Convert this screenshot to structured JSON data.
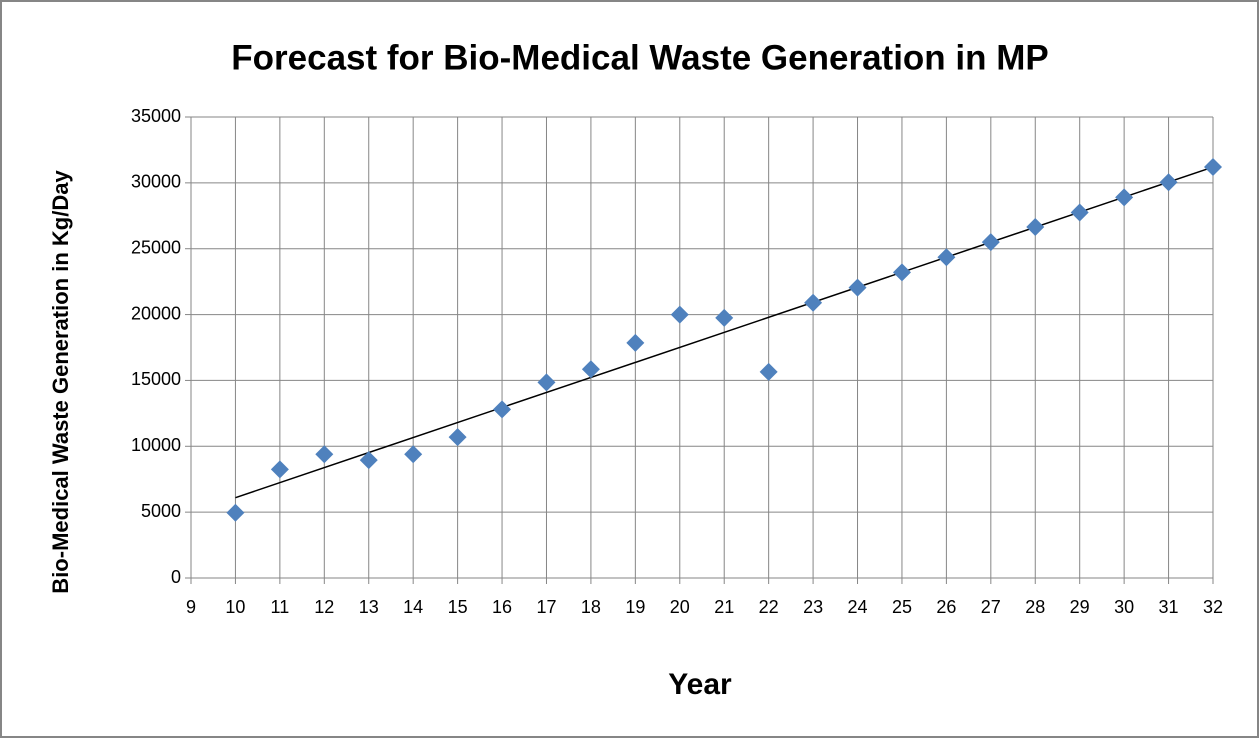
{
  "chart_data": {
    "type": "scatter",
    "title": "Forecast for Bio-Medical Waste Generation in MP",
    "x_label": "Year",
    "y_label": "Bio-Medical Waste Generation in Kg/Day",
    "x": [
      10,
      11,
      12,
      13,
      14,
      15,
      16,
      17,
      18,
      19,
      20,
      21,
      22,
      23,
      24,
      25,
      26,
      27,
      28,
      29,
      30,
      31,
      32
    ],
    "values": [
      4950,
      8250,
      9400,
      8950,
      9400,
      10700,
      12800,
      14850,
      15850,
      17850,
      20000,
      19750,
      15650,
      20900,
      22050,
      23200,
      24350,
      25500,
      26650,
      27750,
      28900,
      30050,
      31200
    ],
    "color": "#4f81bd",
    "trendline": {
      "x": [
        10,
        32
      ],
      "values": [
        6100,
        31200
      ],
      "color": "#000000"
    },
    "xlim": [
      9,
      32
    ],
    "xticks": [
      9,
      10,
      11,
      12,
      13,
      14,
      15,
      16,
      17,
      18,
      19,
      20,
      21,
      22,
      23,
      24,
      25,
      26,
      27,
      28,
      29,
      30,
      31,
      32
    ],
    "ylim": [
      0,
      35000
    ],
    "yticks": [
      0,
      5000,
      10000,
      15000,
      20000,
      25000,
      30000,
      35000
    ],
    "grid": true
  }
}
